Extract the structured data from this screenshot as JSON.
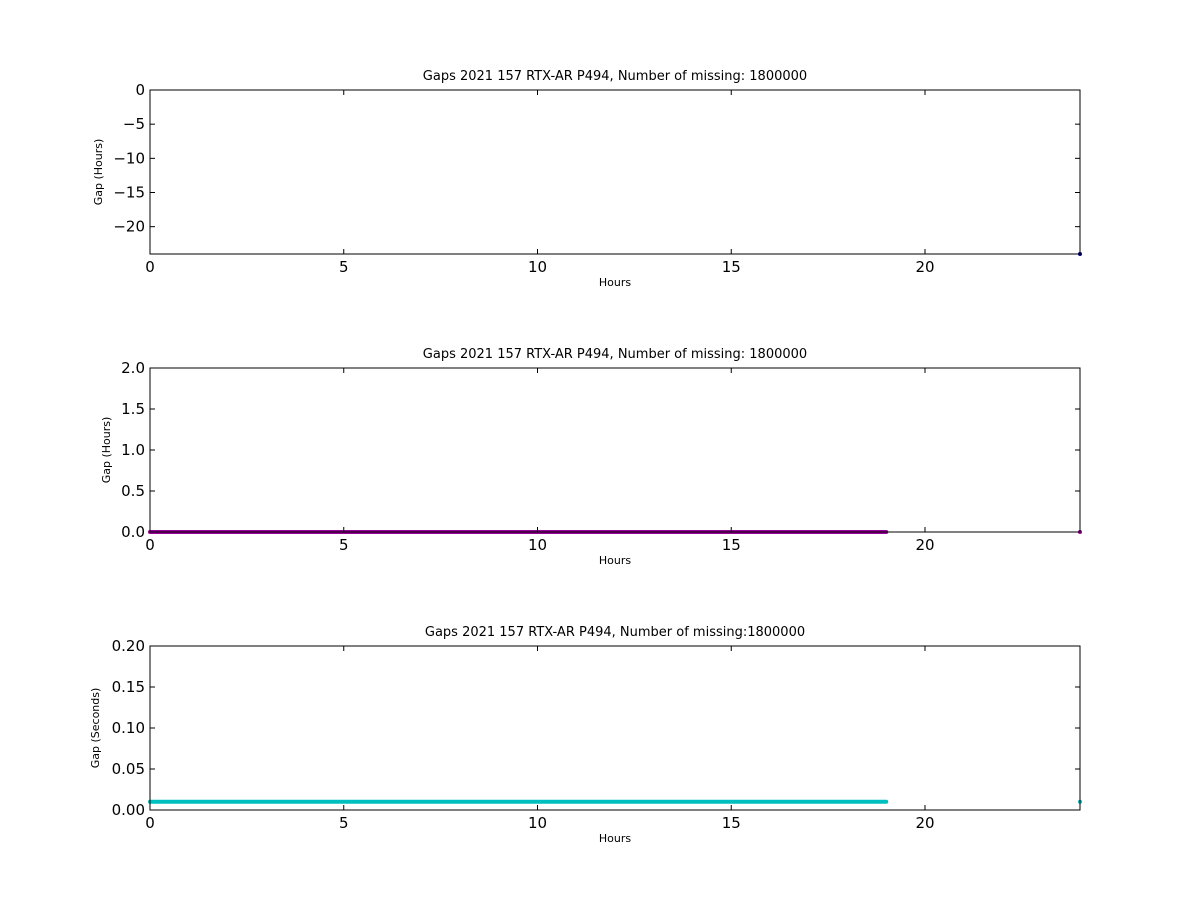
{
  "chart_data": [
    {
      "type": "scatter",
      "title": "Gaps 2021 157 RTX-AR  P494, Number of missing: 1800000",
      "xlabel": "Hours",
      "ylabel": "Gap (Hours)",
      "xlim": [
        0,
        24
      ],
      "ylim": [
        -24,
        0
      ],
      "xticks": [
        0,
        5,
        10,
        15,
        20
      ],
      "yticks": [
        0,
        -5,
        -10,
        -15,
        -20
      ],
      "ytick_labels": [
        "0",
        "−5",
        "−10",
        "−15",
        "−20"
      ],
      "grid": false,
      "series": [
        {
          "color": "#000080",
          "segments": [],
          "points": [
            {
              "x": 24.0,
              "y": -24.0
            }
          ]
        }
      ]
    },
    {
      "type": "scatter",
      "title": "Gaps 2021 157 RTX-AR  P494, Number of missing: 1800000",
      "xlabel": "Hours",
      "ylabel": "Gap (Hours)",
      "xlim": [
        0,
        24
      ],
      "ylim": [
        0,
        2
      ],
      "xticks": [
        0,
        5,
        10,
        15,
        20
      ],
      "yticks": [
        0,
        0.5,
        1,
        1.5,
        2
      ],
      "ytick_labels": [
        "0.0",
        "0.5",
        "1.0",
        "1.5",
        "2.0"
      ],
      "grid": false,
      "series": [
        {
          "color": "#990099",
          "segments": [
            {
              "x0": 0.0,
              "x1": 19.0,
              "y": 0.0
            }
          ],
          "points": [
            {
              "x": 24.0,
              "y": 0.0
            }
          ]
        }
      ]
    },
    {
      "type": "scatter",
      "title": "Gaps 2021 157 RTX-AR  P494, Number of missing:1800000",
      "xlabel": "Hours",
      "ylabel": "Gap (Seconds)",
      "xlim": [
        0,
        24
      ],
      "ylim": [
        0,
        0.2
      ],
      "xticks": [
        0,
        5,
        10,
        15,
        20
      ],
      "yticks": [
        0,
        0.05,
        0.1,
        0.15,
        0.2
      ],
      "ytick_labels": [
        "0.00",
        "0.05",
        "0.10",
        "0.15",
        "0.20"
      ],
      "grid": false,
      "series": [
        {
          "color": "#00bfbf",
          "segments": [
            {
              "x0": 0.0,
              "x1": 19.0,
              "y": 0.01
            }
          ],
          "points": [
            {
              "x": 24.0,
              "y": 0.01
            }
          ]
        }
      ]
    }
  ]
}
